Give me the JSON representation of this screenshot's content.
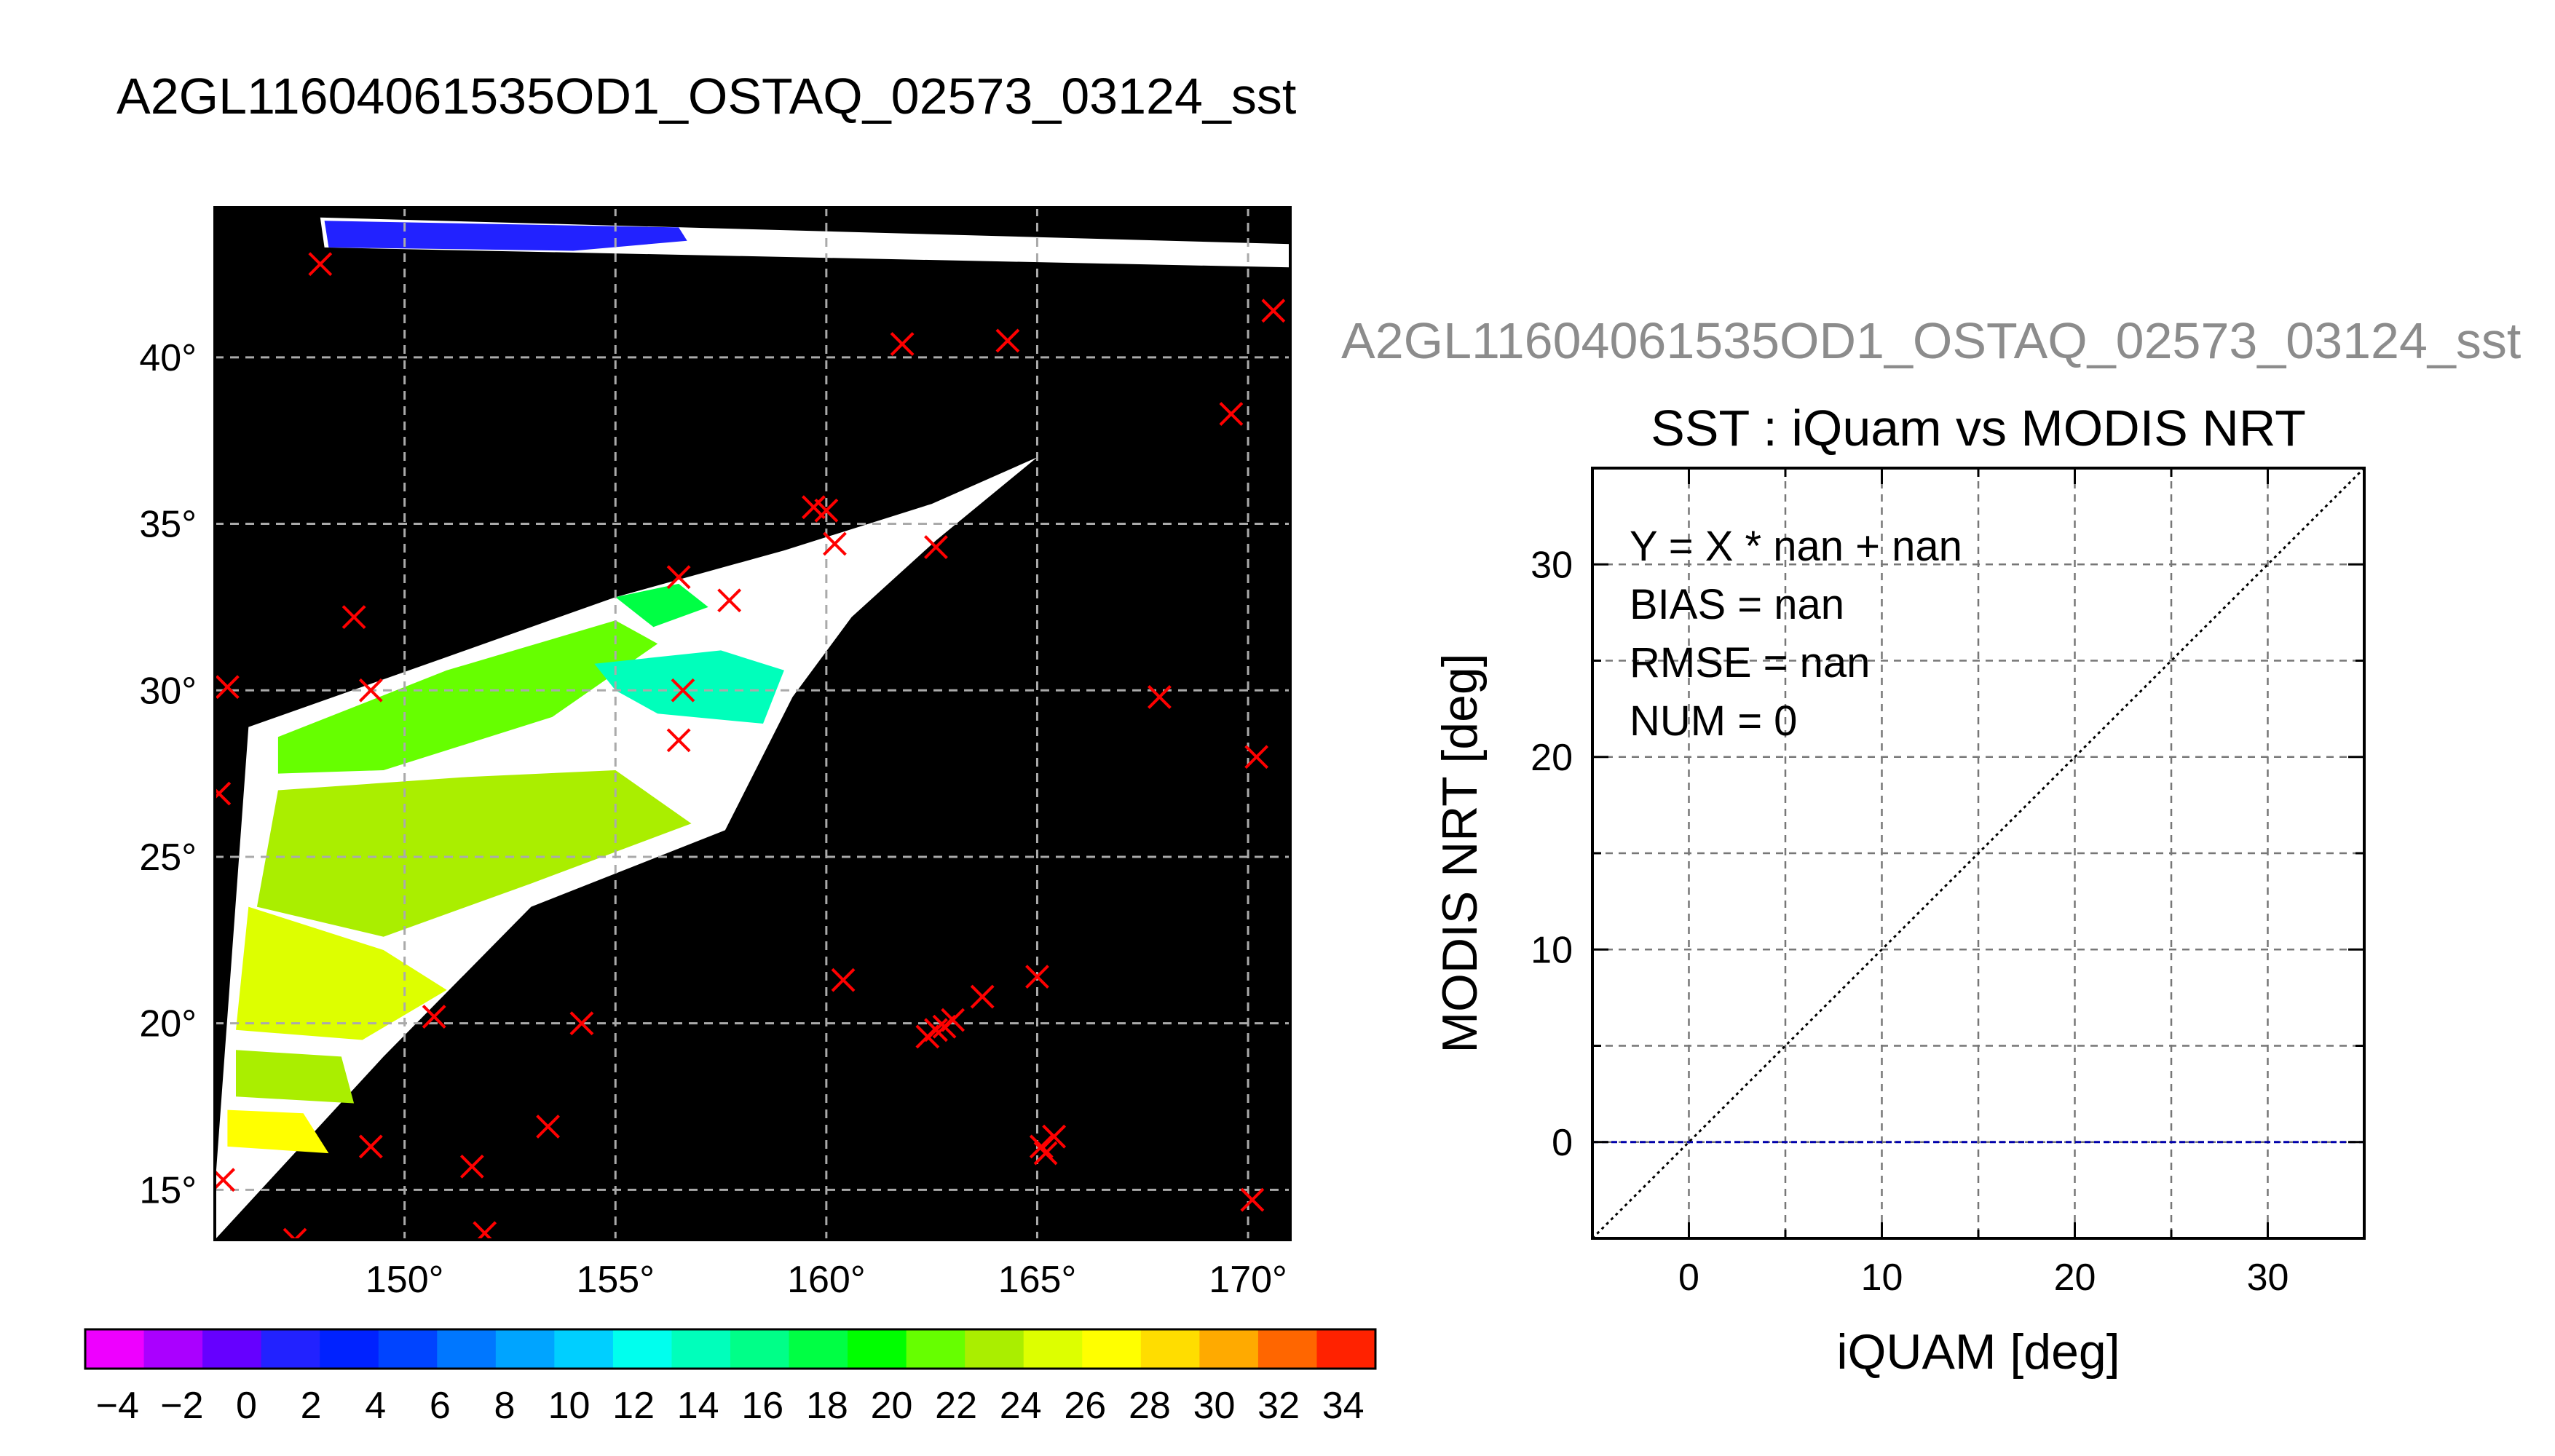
{
  "page": {
    "title": "A2GL11604061535OD1_OSTAQ_02573_03124_sst",
    "scatter_subtitle": "A2GL11604061535OD1_OSTAQ_02573_03124_sst"
  },
  "chart_data": [
    {
      "type": "map",
      "xlim": [
        145.5,
        171
      ],
      "ylim": [
        13.5,
        44.5
      ],
      "lon_ticks": [
        150,
        155,
        160,
        165,
        170
      ],
      "lon_tick_labels": [
        "150°",
        "155°",
        "160°",
        "165°",
        "170°"
      ],
      "lat_ticks": [
        15,
        20,
        25,
        30,
        35,
        40
      ],
      "lat_tick_labels": [
        "15°",
        "20°",
        "25°",
        "30°",
        "35°",
        "40°"
      ],
      "grid": true,
      "background": "#000000",
      "no_data_color": "#ffffff",
      "swaths": [
        {
          "points": [
            [
              148.0,
              44.2
            ],
            [
              171.0,
              43.4
            ],
            [
              171.0,
              42.7
            ],
            [
              148.1,
              43.3
            ]
          ]
        },
        {
          "points": [
            [
              146.3,
              28.9
            ],
            [
              151.0,
              31.0
            ],
            [
              155.0,
              32.8
            ],
            [
              159.0,
              34.2
            ],
            [
              162.5,
              35.6
            ],
            [
              165.0,
              37.0
            ],
            [
              162.6,
              34.5
            ],
            [
              160.6,
              32.2
            ],
            [
              159.2,
              29.8
            ],
            [
              157.6,
              25.8
            ],
            [
              153.0,
              23.5
            ],
            [
              149.5,
              19.0
            ],
            [
              145.5,
              13.5
            ],
            [
              145.5,
              15.0
            ]
          ]
        }
      ],
      "sst_patches": [
        {
          "value": 2,
          "points": [
            [
              148.1,
              44.1
            ],
            [
              156.5,
              43.9
            ],
            [
              156.7,
              43.5
            ],
            [
              154.0,
              43.2
            ],
            [
              148.2,
              43.3
            ]
          ]
        },
        {
          "value": 21,
          "points": [
            [
              147.0,
              28.6
            ],
            [
              151.0,
              30.6
            ],
            [
              155.0,
              32.1
            ],
            [
              156.0,
              31.4
            ],
            [
              153.5,
              29.2
            ],
            [
              149.5,
              27.6
            ],
            [
              147.0,
              27.5
            ]
          ]
        },
        {
          "value": 14,
          "points": [
            [
              154.5,
              30.8
            ],
            [
              157.5,
              31.2
            ],
            [
              159.0,
              30.6
            ],
            [
              158.5,
              29.0
            ],
            [
              156.0,
              29.3
            ],
            [
              155.0,
              30.0
            ]
          ]
        },
        {
          "value": 17,
          "points": [
            [
              155.0,
              32.8
            ],
            [
              156.5,
              33.2
            ],
            [
              157.2,
              32.5
            ],
            [
              155.9,
              31.9
            ]
          ]
        },
        {
          "value": 23,
          "points": [
            [
              147.0,
              27.0
            ],
            [
              151.5,
              27.4
            ],
            [
              155.0,
              27.6
            ],
            [
              156.8,
              26.0
            ],
            [
              153.0,
              24.2
            ],
            [
              149.5,
              22.6
            ],
            [
              146.5,
              23.5
            ]
          ]
        },
        {
          "value": 25,
          "points": [
            [
              146.3,
              23.5
            ],
            [
              149.5,
              22.2
            ],
            [
              151.0,
              21.0
            ],
            [
              149.0,
              19.5
            ],
            [
              146.0,
              19.8
            ]
          ]
        },
        {
          "value": 24,
          "points": [
            [
              146.0,
              19.2
            ],
            [
              148.5,
              19.0
            ],
            [
              148.8,
              17.6
            ],
            [
              146.0,
              17.8
            ]
          ]
        },
        {
          "value": 27,
          "points": [
            [
              145.8,
              17.4
            ],
            [
              147.6,
              17.3
            ],
            [
              148.2,
              16.1
            ],
            [
              145.8,
              16.3
            ]
          ]
        }
      ],
      "cross_markers": {
        "color": "#ff0000",
        "lon": [
          148.0,
          170.6,
          161.8,
          164.3,
          169.6,
          159.7,
          160.0,
          160.2,
          162.6,
          156.5,
          157.7,
          148.8,
          145.8,
          149.2,
          156.6,
          156.5,
          167.9,
          170.2,
          145.6,
          160.4,
          163.7,
          165.0,
          150.7,
          154.2,
          162.4,
          162.6,
          162.8,
          163.0,
          149.2,
          151.6,
          153.4,
          165.1,
          165.4,
          165.2,
          145.7,
          147.4,
          151.9,
          170.1
        ],
        "lat": [
          42.8,
          41.4,
          40.4,
          40.5,
          38.3,
          35.5,
          35.4,
          34.4,
          34.3,
          33.4,
          32.7,
          32.2,
          30.1,
          30.0,
          30.0,
          28.5,
          29.8,
          28.0,
          26.9,
          21.3,
          20.8,
          21.4,
          20.2,
          20.0,
          19.6,
          19.8,
          19.9,
          20.1,
          16.3,
          15.7,
          16.9,
          16.3,
          16.6,
          16.1,
          15.3,
          13.5,
          13.7,
          14.7
        ]
      },
      "colorbar": {
        "range": [
          -5,
          35
        ],
        "step": 2,
        "tick_values": [
          -4,
          -2,
          0,
          2,
          4,
          6,
          8,
          10,
          12,
          14,
          16,
          18,
          20,
          22,
          24,
          26,
          28,
          30,
          32,
          34
        ],
        "tick_labels": [
          "−4",
          "−2",
          "0",
          "2",
          "4",
          "6",
          "8",
          "10",
          "12",
          "14",
          "16",
          "18",
          "20",
          "22",
          "24",
          "26",
          "28",
          "30",
          "32",
          "34"
        ],
        "colors": [
          "#ee00ff",
          "#aa00ff",
          "#6600ff",
          "#2222ff",
          "#0022ff",
          "#0044ff",
          "#0077ff",
          "#00a4ff",
          "#00cfff",
          "#00ffee",
          "#00ffbb",
          "#00ff88",
          "#00ff44",
          "#00ff00",
          "#66ff00",
          "#aaee00",
          "#ddff00",
          "#ffff00",
          "#ffdd00",
          "#ffaa00",
          "#ff6600",
          "#ff2200"
        ]
      }
    },
    {
      "type": "scatter",
      "title": "SST : iQuam vs MODIS NRT",
      "xlabel": "iQUAM [deg]",
      "ylabel": "MODIS NRT [deg]",
      "xlim": [
        -5,
        35
      ],
      "ylim": [
        -5,
        35
      ],
      "x_ticks": [
        0,
        10,
        20,
        30
      ],
      "y_ticks": [
        0,
        10,
        20,
        30
      ],
      "grid": true,
      "stats": [
        "Y = X * nan + nan",
        "BIAS = nan",
        "RMSE = nan",
        "NUM = 0"
      ],
      "one_to_one_line": {
        "x": [
          -5,
          35
        ],
        "y": [
          -5,
          35
        ],
        "color": "#000000",
        "style": "dotted"
      },
      "zero_line": {
        "y": 0,
        "color": "#0000aa",
        "style": "dashed"
      },
      "points": []
    }
  ]
}
